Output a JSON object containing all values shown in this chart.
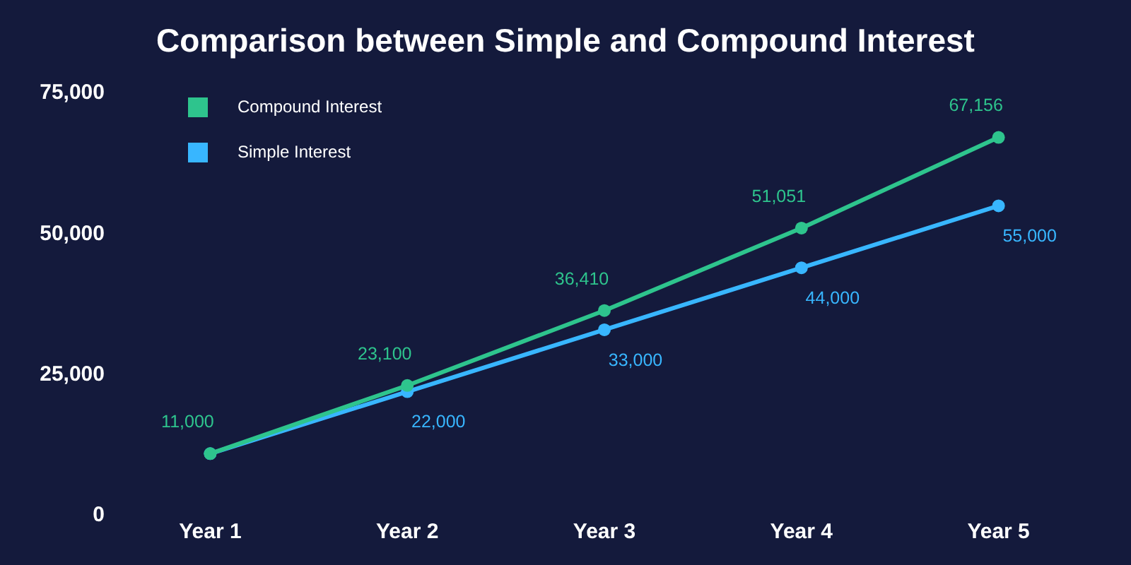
{
  "chart_data": {
    "type": "line",
    "title": "Comparison between Simple and Compound Interest",
    "categories": [
      "Year 1",
      "Year 2",
      "Year 3",
      "Year 4",
      "Year 5"
    ],
    "series": [
      {
        "name": "Compound Interest",
        "color": "#2ec48d",
        "values": [
          11000,
          23100,
          36410,
          51051,
          67156
        ],
        "value_labels": [
          "11,000",
          "23,100",
          "36,410",
          "51,051",
          "67,156"
        ]
      },
      {
        "name": "Simple Interest",
        "color": "#38b6ff",
        "values": [
          11000,
          22000,
          33000,
          44000,
          55000
        ],
        "value_labels": [
          null,
          "22,000",
          "33,000",
          "44,000",
          "55,000"
        ]
      }
    ],
    "ylim": [
      0,
      75000
    ],
    "yticks": [
      0,
      {
        "value": 25000,
        "label": "25,000"
      },
      {
        "value": 50000,
        "label": "50,000"
      },
      {
        "value": 75000,
        "label": "75,000"
      }
    ],
    "grid": false,
    "legend": "top left",
    "marker": "circle",
    "line_style": "solid"
  }
}
